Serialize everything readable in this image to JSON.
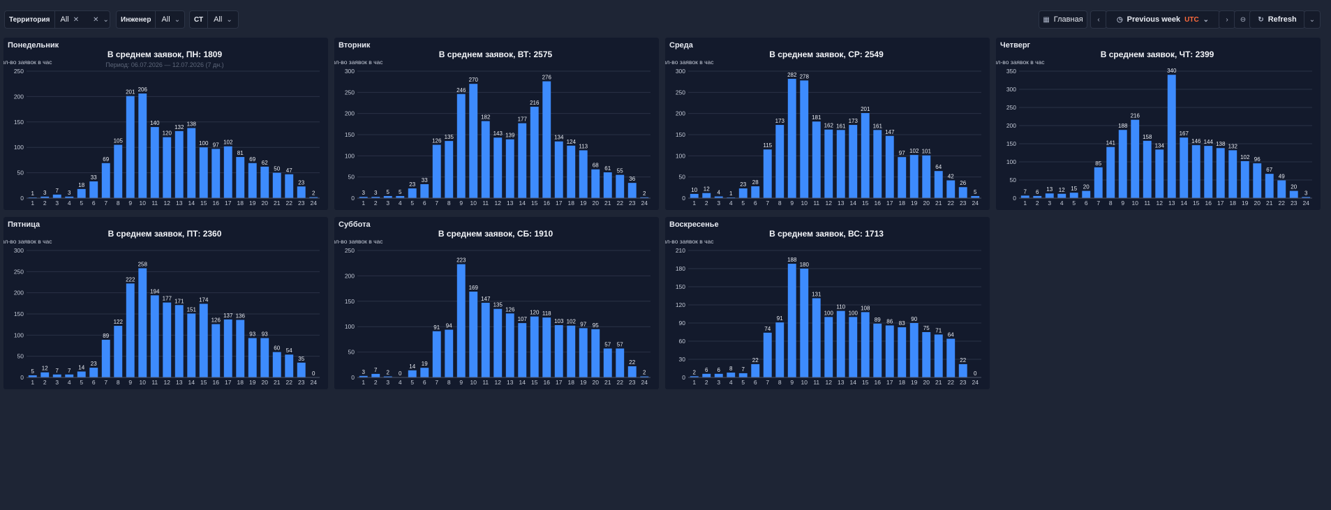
{
  "toolbar": {
    "territory_label": "Территория",
    "territory_value": "All",
    "engineer_label": "Инженер",
    "engineer_value": "All",
    "st_label": "СТ",
    "st_value": "All",
    "dashboard_button": "Главная",
    "time_range": "Previous week",
    "timezone": "UTC",
    "refresh": "Refresh"
  },
  "panels": [
    {
      "title": "Понедельник"
    },
    {
      "title": "Вторник"
    },
    {
      "title": "Среда"
    },
    {
      "title": "Четверг"
    },
    {
      "title": "Пятница"
    },
    {
      "title": "Суббота"
    },
    {
      "title": "Воскресенье"
    }
  ],
  "chart_data": [
    {
      "type": "bar",
      "title": "В среднем заявок, ПН: 1809",
      "subtitle": "Период: 06.07.2026 — 12.07.2026 (7 дн.)",
      "ylabel": "Кол-во заявок в час",
      "categories": [
        "1",
        "2",
        "3",
        "4",
        "5",
        "6",
        "7",
        "8",
        "9",
        "10",
        "11",
        "12",
        "13",
        "14",
        "15",
        "16",
        "17",
        "18",
        "19",
        "20",
        "21",
        "22",
        "23",
        "24"
      ],
      "values": [
        1,
        3,
        7,
        3,
        18,
        33,
        69,
        105,
        201,
        206,
        140,
        120,
        132,
        138,
        100,
        97,
        102,
        81,
        69,
        62,
        50,
        47,
        23,
        2
      ],
      "ylim": [
        0,
        250
      ],
      "yticks": [
        0,
        50,
        100,
        150,
        200,
        250
      ],
      "color": "#3d8bfd"
    },
    {
      "type": "bar",
      "title": "В среднем заявок, ВТ: 2575",
      "ylabel": "Кол-во заявок в час",
      "categories": [
        "1",
        "2",
        "3",
        "4",
        "5",
        "6",
        "7",
        "8",
        "9",
        "10",
        "11",
        "12",
        "13",
        "14",
        "15",
        "16",
        "17",
        "18",
        "19",
        "20",
        "21",
        "22",
        "23",
        "24"
      ],
      "values": [
        3,
        3,
        5,
        5,
        23,
        33,
        126,
        135,
        246,
        270,
        182,
        143,
        139,
        177,
        216,
        276,
        134,
        124,
        113,
        68,
        61,
        55,
        36,
        2
      ],
      "ylim": [
        0,
        300
      ],
      "yticks": [
        0,
        50,
        100,
        150,
        200,
        250,
        300
      ],
      "color": "#3d8bfd"
    },
    {
      "type": "bar",
      "title": "В среднем заявок, СР: 2549",
      "ylabel": "Кол-во заявок в час",
      "categories": [
        "1",
        "2",
        "3",
        "4",
        "5",
        "6",
        "7",
        "8",
        "9",
        "10",
        "11",
        "12",
        "13",
        "14",
        "15",
        "16",
        "17",
        "18",
        "19",
        "20",
        "21",
        "22",
        "23",
        "24"
      ],
      "values": [
        10,
        12,
        4,
        1,
        23,
        28,
        115,
        173,
        282,
        278,
        181,
        162,
        161,
        173,
        201,
        161,
        147,
        97,
        102,
        101,
        64,
        42,
        26,
        5
      ],
      "ylim": [
        0,
        300
      ],
      "yticks": [
        0,
        50,
        100,
        150,
        200,
        250,
        300
      ],
      "color": "#3d8bfd"
    },
    {
      "type": "bar",
      "title": "В среднем заявок, ЧТ: 2399",
      "ylabel": "Кол-во заявок в час",
      "categories": [
        "1",
        "2",
        "3",
        "4",
        "5",
        "6",
        "7",
        "8",
        "9",
        "10",
        "11",
        "12",
        "13",
        "14",
        "15",
        "16",
        "17",
        "18",
        "19",
        "20",
        "21",
        "22",
        "23",
        "24"
      ],
      "values": [
        7,
        6,
        13,
        12,
        15,
        20,
        85,
        141,
        188,
        216,
        158,
        134,
        340,
        167,
        146,
        144,
        138,
        132,
        102,
        96,
        67,
        49,
        20,
        3
      ],
      "ylim": [
        0,
        350
      ],
      "yticks": [
        0,
        50,
        100,
        150,
        200,
        250,
        300,
        350
      ],
      "color": "#3d8bfd"
    },
    {
      "type": "bar",
      "title": "В среднем заявок, ПТ: 2360",
      "ylabel": "Кол-во заявок в час",
      "categories": [
        "1",
        "2",
        "3",
        "4",
        "5",
        "6",
        "7",
        "8",
        "9",
        "10",
        "11",
        "12",
        "13",
        "14",
        "15",
        "16",
        "17",
        "18",
        "19",
        "20",
        "21",
        "22",
        "23",
        "24"
      ],
      "values": [
        5,
        12,
        7,
        7,
        14,
        23,
        89,
        122,
        222,
        258,
        194,
        177,
        171,
        151,
        174,
        126,
        137,
        136,
        93,
        93,
        60,
        54,
        35,
        0
      ],
      "ylim": [
        0,
        300
      ],
      "yticks": [
        0,
        50,
        100,
        150,
        200,
        250,
        300
      ],
      "color": "#3d8bfd"
    },
    {
      "type": "bar",
      "title": "В среднем заявок, СБ: 1910",
      "ylabel": "Кол-во заявок в час",
      "categories": [
        "1",
        "2",
        "3",
        "4",
        "5",
        "6",
        "7",
        "8",
        "9",
        "10",
        "11",
        "12",
        "13",
        "14",
        "15",
        "16",
        "17",
        "18",
        "19",
        "20",
        "21",
        "22",
        "23",
        "24"
      ],
      "values": [
        3,
        7,
        2,
        0,
        14,
        19,
        91,
        94,
        223,
        169,
        147,
        135,
        126,
        107,
        120,
        118,
        103,
        102,
        97,
        95,
        57,
        57,
        22,
        2
      ],
      "ylim": [
        0,
        250
      ],
      "yticks": [
        0,
        50,
        100,
        150,
        200,
        250
      ],
      "color": "#3d8bfd"
    },
    {
      "type": "bar",
      "title": "В среднем заявок, ВС: 1713",
      "ylabel": "Кол-во заявок в час",
      "categories": [
        "1",
        "2",
        "3",
        "4",
        "5",
        "6",
        "7",
        "8",
        "9",
        "10",
        "11",
        "12",
        "13",
        "14",
        "15",
        "16",
        "17",
        "18",
        "19",
        "20",
        "21",
        "22",
        "23",
        "24"
      ],
      "values": [
        2,
        6,
        6,
        8,
        7,
        22,
        74,
        91,
        188,
        180,
        131,
        100,
        110,
        100,
        108,
        89,
        86,
        83,
        90,
        75,
        71,
        64,
        22,
        0
      ],
      "ylim": [
        0,
        210
      ],
      "yticks": [
        0,
        30,
        60,
        90,
        120,
        150,
        180,
        210
      ],
      "color": "#3d8bfd"
    }
  ]
}
